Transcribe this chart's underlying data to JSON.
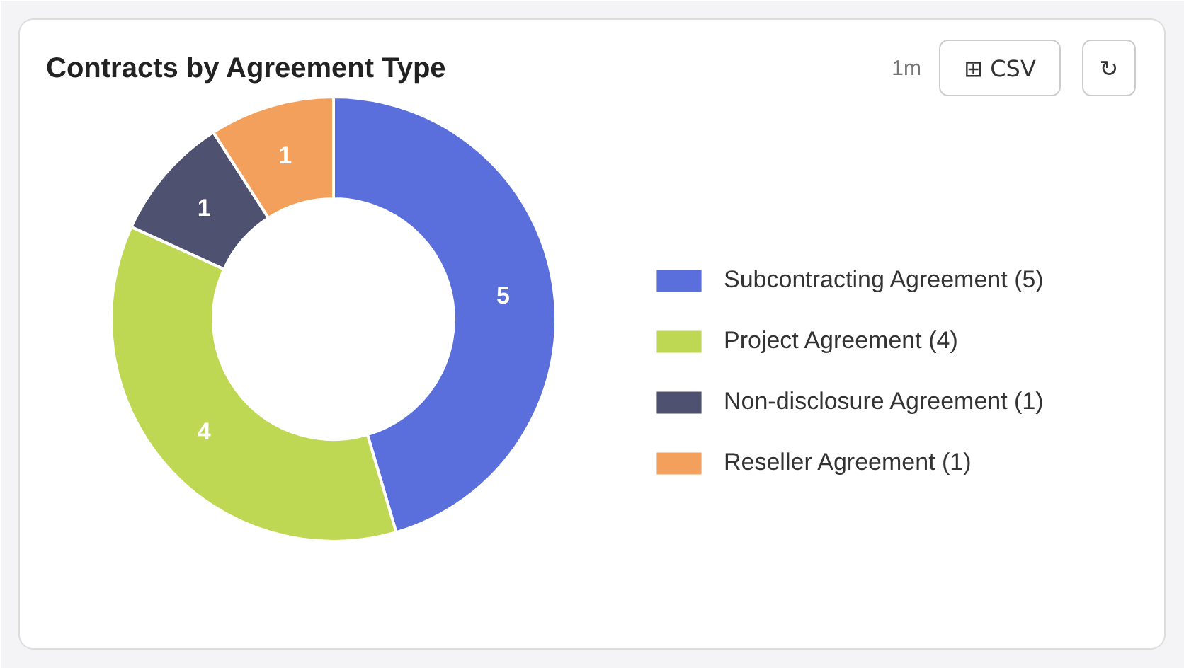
{
  "chart_data": {
    "type": "donut",
    "title": "Contracts by Agreement Type",
    "categories": [
      "Subcontracting Agreement (5)",
      "Project Agreement (4)",
      "Non-disclosure Agreement (1)",
      "Reseller Agreement (1)"
    ],
    "values": [
      5,
      4,
      1,
      1
    ],
    "colors": [
      "#5a6fdb",
      "#bfd854",
      "#4f5170",
      "#f2a05c"
    ],
    "data_labels": true,
    "legend": "right",
    "annotations": [
      "1m",
      "⊞ CSV",
      "↻"
    ]
  }
}
